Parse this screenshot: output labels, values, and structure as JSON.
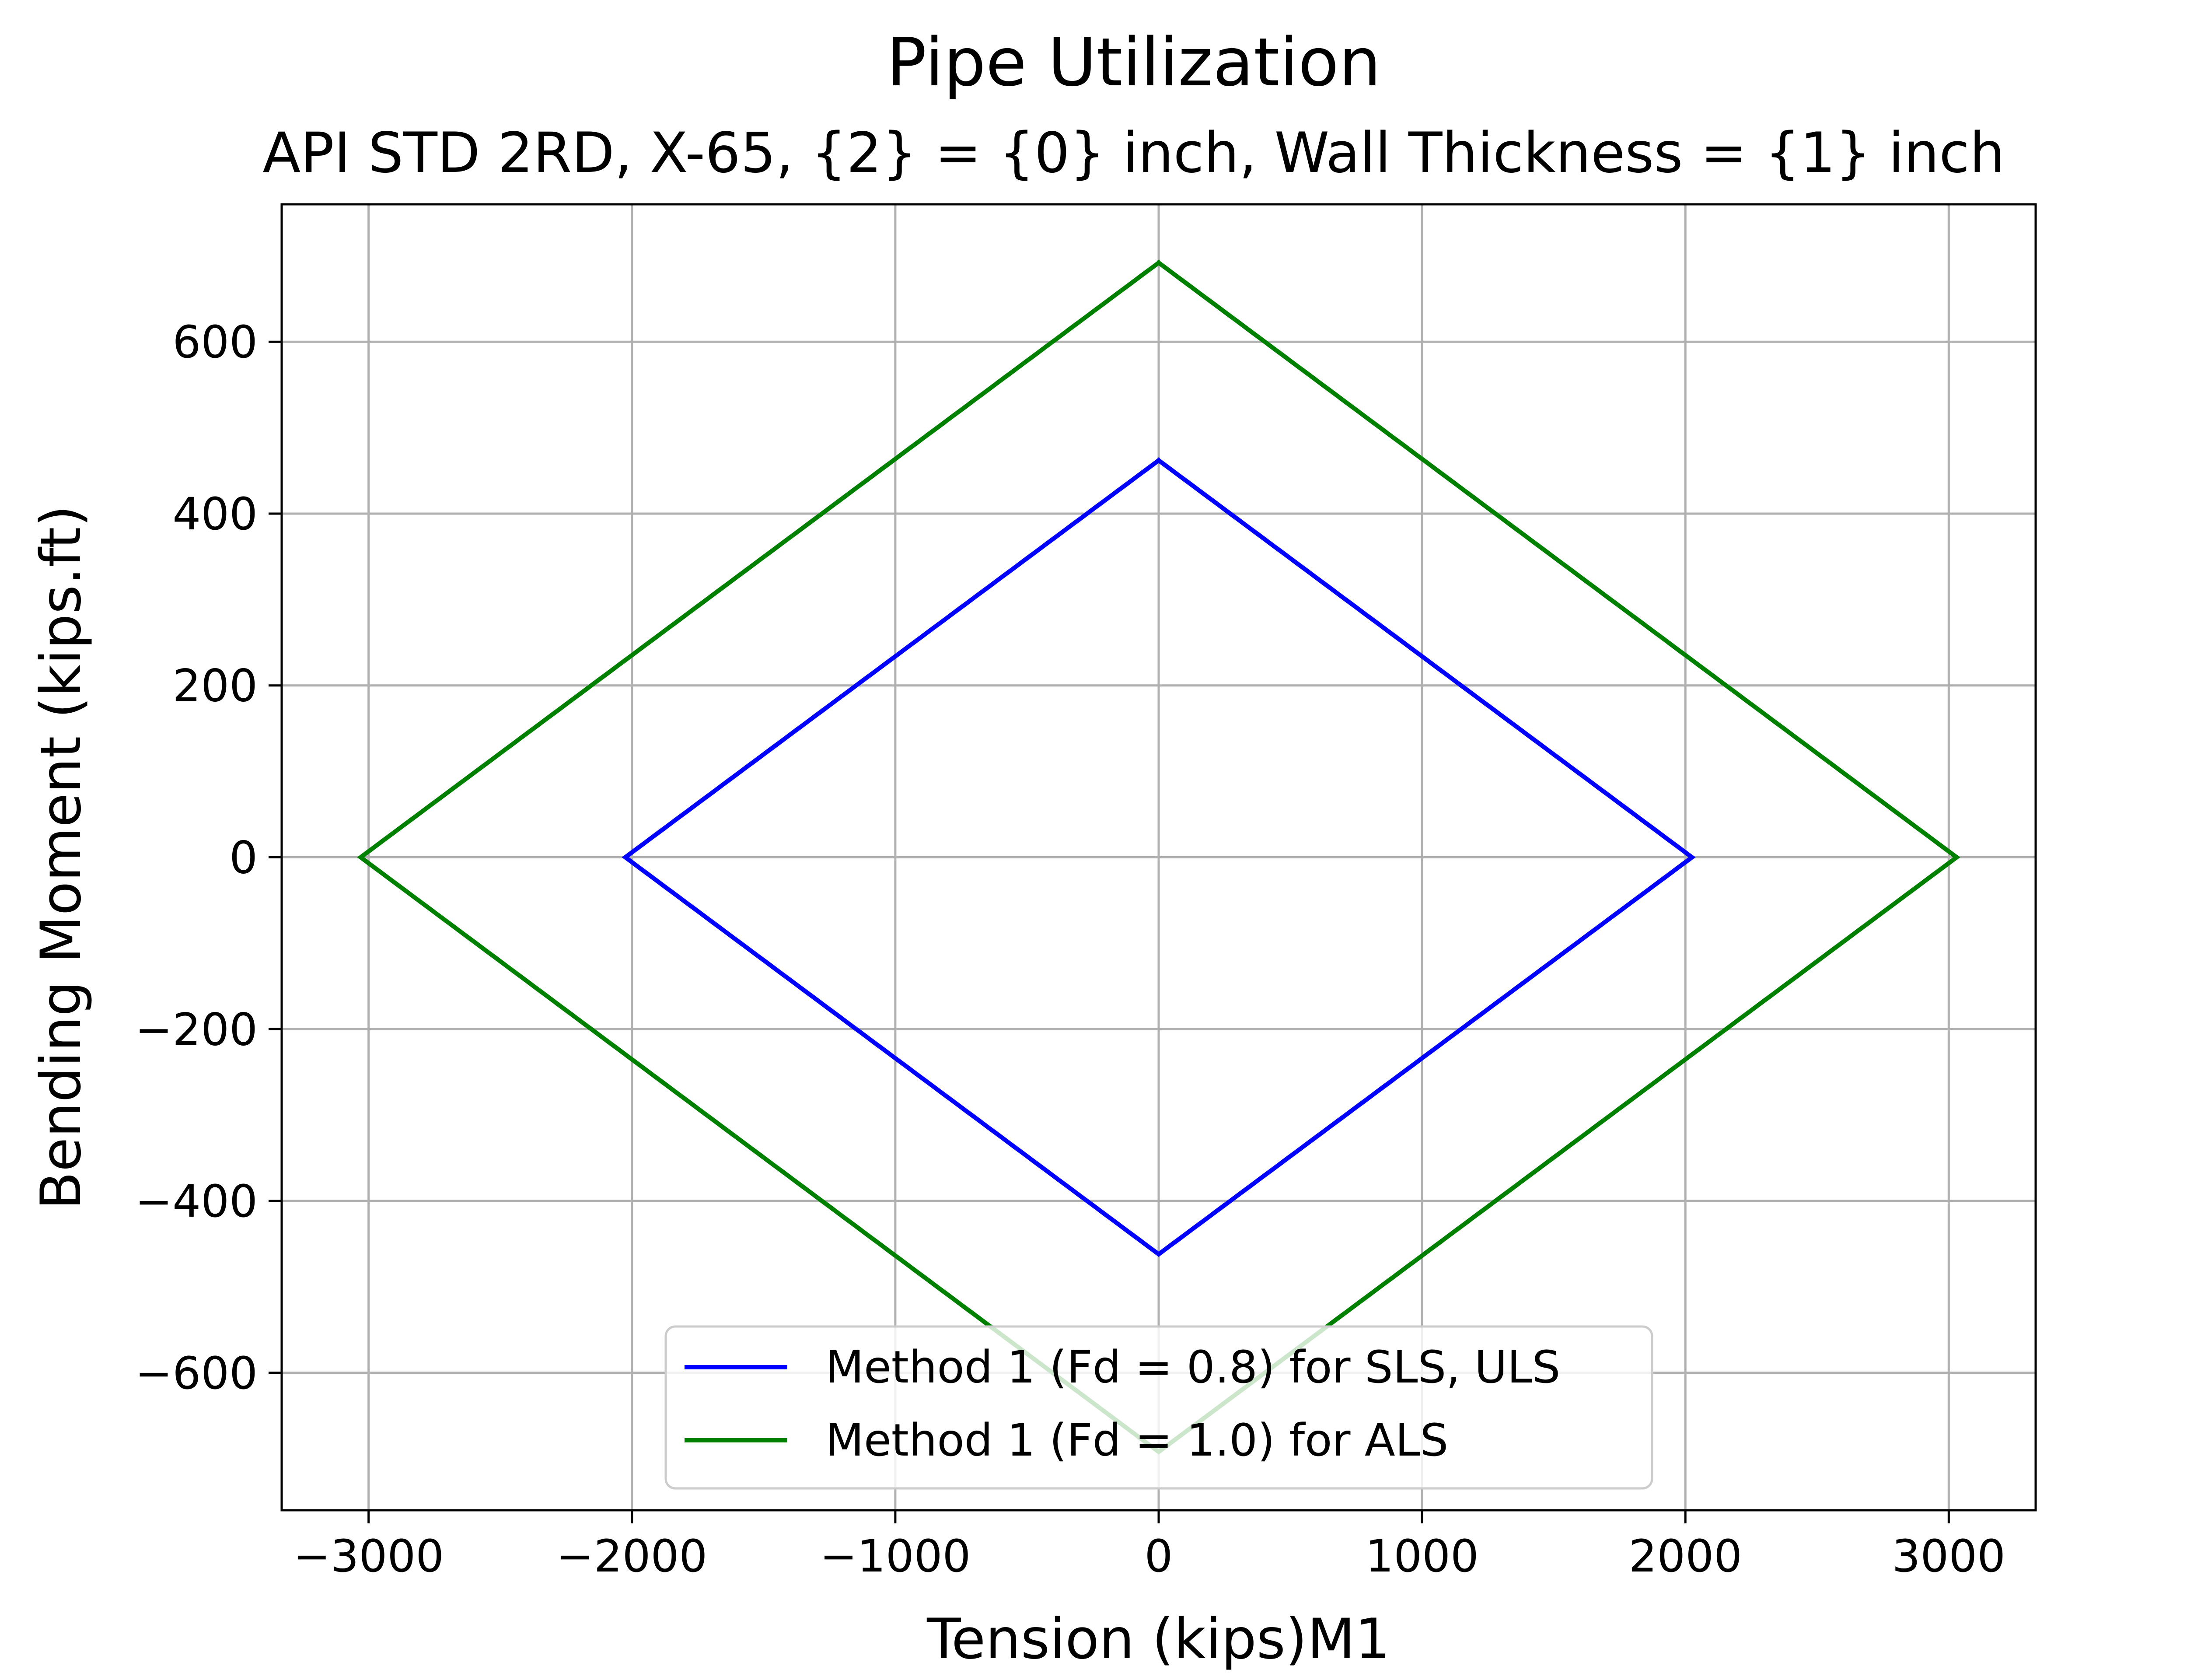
{
  "chart_data": {
    "type": "line",
    "title": "Pipe Utilization",
    "subtitle": "API STD 2RD, X-65, {2} = {0} inch, Wall Thickness = {1} inch",
    "xlabel": "Tension (kips)M1",
    "ylabel": "Bending Moment (kips.ft)",
    "xlim": [
      -3330,
      3330
    ],
    "ylim": [
      -760,
      760
    ],
    "xticks": [
      -3000,
      -2000,
      -1000,
      0,
      1000,
      2000,
      3000
    ],
    "xtick_labels": [
      "−3000",
      "−2000",
      "−1000",
      "0",
      "1000",
      "2000",
      "3000"
    ],
    "yticks": [
      600,
      400,
      200,
      0,
      -200,
      -400,
      -600
    ],
    "ytick_labels": [
      "600",
      "400",
      "200",
      "0",
      "−200",
      "−400",
      "−600"
    ],
    "grid": true,
    "legend_position": "lower center",
    "series": [
      {
        "name": "Method 1 (Fd = 0.8) for SLS, ULS",
        "color": "#0000ff",
        "x": [
          0,
          2025,
          0,
          -2025,
          0
        ],
        "y": [
          462,
          0,
          -462,
          0,
          462
        ]
      },
      {
        "name": "Method 1 (Fd = 1.0) for ALS",
        "color": "#008000",
        "x": [
          0,
          3030,
          0,
          -3030,
          0
        ],
        "y": [
          692,
          0,
          -692,
          0,
          692
        ]
      }
    ]
  }
}
